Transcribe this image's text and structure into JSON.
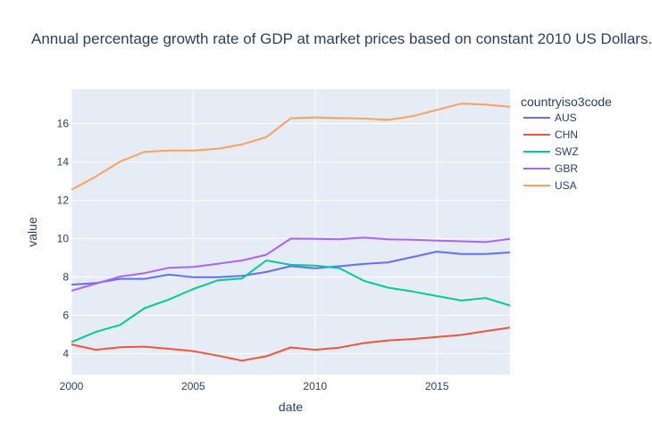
{
  "chart_data": {
    "type": "line",
    "title": "Annual percentage growth rate of GDP at market prices based on constant 2010 US Dollars.",
    "xlabel": "date",
    "ylabel": "value",
    "xlim": [
      2000,
      2018
    ],
    "ylim": [
      2.9,
      17.8
    ],
    "x_ticks": [
      2000,
      2005,
      2010,
      2015
    ],
    "y_ticks": [
      4,
      6,
      8,
      10,
      12,
      14,
      16
    ],
    "x_tick_labels": [
      "2000",
      "2005",
      "2010",
      "2015"
    ],
    "y_tick_labels": [
      "4",
      "6",
      "8",
      "10",
      "12",
      "14",
      "16"
    ],
    "grid": true,
    "legend": {
      "title": "countryiso3code",
      "position": "right"
    },
    "x": [
      2000,
      2001,
      2002,
      2003,
      2004,
      2005,
      2006,
      2007,
      2008,
      2009,
      2010,
      2011,
      2012,
      2013,
      2014,
      2015,
      2016,
      2017,
      2018
    ],
    "series": [
      {
        "name": "AUS",
        "color": "#636efa",
        "values": [
          7.6,
          7.68,
          7.9,
          7.9,
          8.12,
          7.99,
          7.99,
          8.06,
          8.26,
          8.56,
          8.45,
          8.56,
          8.68,
          8.76,
          9.04,
          9.32,
          9.2,
          9.2,
          9.28
        ]
      },
      {
        "name": "CHN",
        "color": "#ef553b",
        "values": [
          4.48,
          4.2,
          4.33,
          4.36,
          4.25,
          4.13,
          3.89,
          3.63,
          3.86,
          4.32,
          4.2,
          4.31,
          4.55,
          4.69,
          4.76,
          4.87,
          4.97,
          5.17,
          5.36
        ]
      },
      {
        "name": "SWZ",
        "color": "#00cc96",
        "values": [
          4.6,
          5.13,
          5.5,
          6.37,
          6.82,
          7.37,
          7.82,
          7.92,
          8.86,
          8.63,
          8.59,
          8.46,
          7.8,
          7.44,
          7.24,
          7.0,
          6.77,
          6.9,
          6.51
        ]
      },
      {
        "name": "GBR",
        "color": "#ab63fa",
        "values": [
          7.28,
          7.65,
          8.02,
          8.2,
          8.48,
          8.52,
          8.69,
          8.86,
          9.16,
          10.0,
          9.99,
          9.97,
          10.05,
          9.97,
          9.94,
          9.9,
          9.86,
          9.82,
          9.99
        ]
      },
      {
        "name": "USA",
        "color": "#ffa15a",
        "values": [
          12.55,
          13.24,
          14.03,
          14.53,
          14.6,
          14.6,
          14.69,
          14.92,
          15.3,
          16.28,
          16.33,
          16.29,
          16.27,
          16.2,
          16.39,
          16.72,
          17.05,
          17.0,
          16.88
        ]
      }
    ]
  }
}
